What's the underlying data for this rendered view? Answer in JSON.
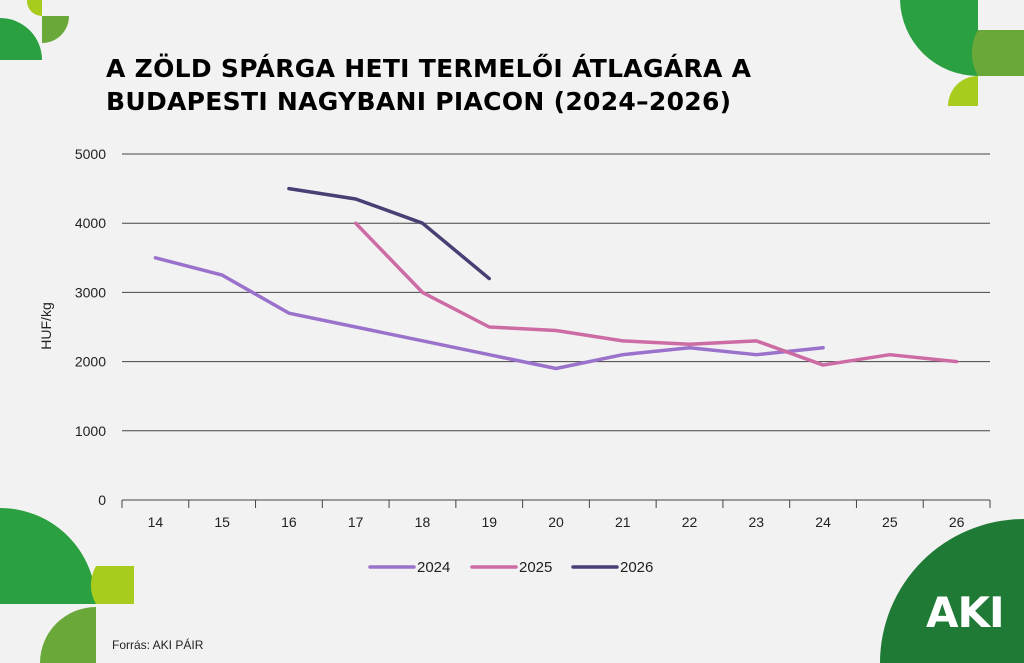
{
  "title": {
    "line1": "A ZÖLD SPÁRGA HETI TERMELŐI ÁTLAGÁRA A",
    "line2": "BUDAPESTI NAGYBANI PIACON (2024–2026)"
  },
  "source": "Forrás: AKI PÁIR",
  "logo": "AKI",
  "colors": {
    "background": "#f2f2f2",
    "green_dark": "#1f7a35",
    "green_mid": "#2aa040",
    "green_olive": "#6aa83a",
    "green_lime": "#a8cc1e",
    "grid": "#444444"
  },
  "chart_data": {
    "type": "line",
    "ylabel": "HUF/kg",
    "xlabel": "",
    "ylim": [
      0,
      5000
    ],
    "yticks": [
      0,
      1000,
      2000,
      3000,
      4000,
      5000
    ],
    "categories": [
      "14",
      "15",
      "16",
      "17",
      "18",
      "19",
      "20",
      "21",
      "22",
      "23",
      "24",
      "25",
      "26"
    ],
    "legend_position": "bottom",
    "grid": true,
    "series": [
      {
        "name": "2024",
        "color": "#9b72cb",
        "x": [
          14,
          15,
          16,
          17,
          18,
          19,
          20,
          21,
          22,
          23,
          24
        ],
        "values": [
          3500,
          3250,
          2700,
          2500,
          2300,
          2100,
          1900,
          2100,
          2200,
          2100,
          2200
        ]
      },
      {
        "name": "2025",
        "color": "#cd6ba5",
        "x": [
          17,
          18,
          19,
          20,
          21,
          22,
          23,
          24,
          25,
          26
        ],
        "values": [
          4000,
          3000,
          2500,
          2450,
          2300,
          2250,
          2300,
          1950,
          2100,
          2000
        ]
      },
      {
        "name": "2026",
        "color": "#4a3f74",
        "x": [
          16,
          17,
          18,
          19
        ],
        "values": [
          4500,
          4350,
          4000,
          3200
        ]
      }
    ]
  }
}
